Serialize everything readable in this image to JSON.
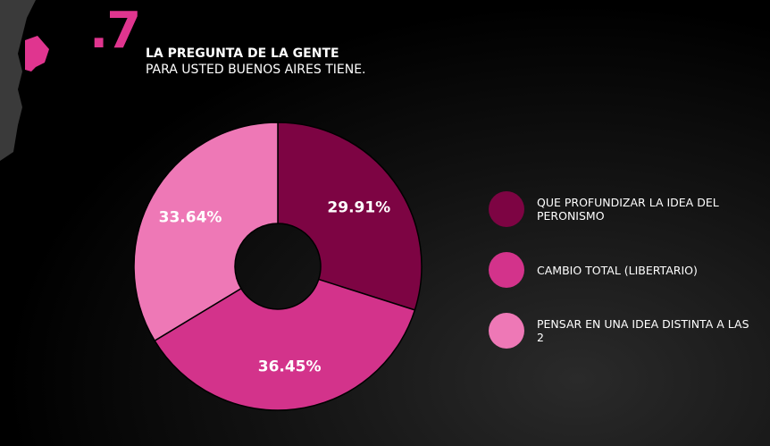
{
  "header": {
    "number": ".7",
    "title": "LA PREGUNTA DE LA GENTE",
    "subtitle": "PARA USTED BUENOS AIRES TIENE."
  },
  "chart_data": {
    "type": "pie",
    "donut": true,
    "title": "LA PREGUNTA DE LA GENTE PARA USTED BUENOS AIRES TIENE.",
    "categories": [
      "QUE PROFUNDIZAR LA IDEA DEL PERONISMO",
      "CAMBIO TOTAL (LIBERTARIO)",
      "PENSAR EN UNA IDEA DISTINTA A LAS 2"
    ],
    "values": [
      29.91,
      36.45,
      33.64
    ],
    "labels": [
      "29.91%",
      "36.45%",
      "33.64%"
    ],
    "colors": [
      "#7d0443",
      "#d3338b",
      "#ee78b6"
    ],
    "legend_placement": "right"
  }
}
